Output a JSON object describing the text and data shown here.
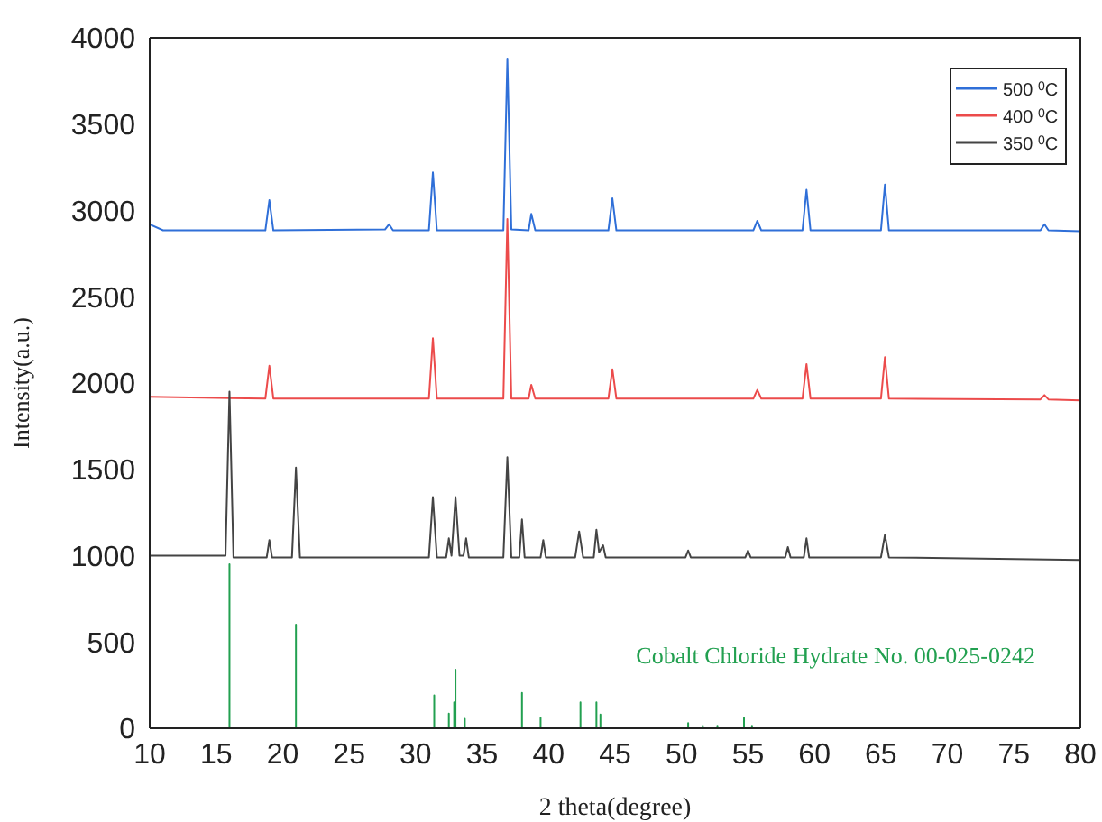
{
  "chart_data": {
    "type": "line",
    "xlabel": "2 theta(degree)",
    "ylabel": "Intensity(a.u.)",
    "xlim": [
      10,
      80
    ],
    "xticks": [
      10,
      15,
      20,
      25,
      30,
      35,
      40,
      45,
      50,
      55,
      60,
      65,
      70,
      75,
      80
    ],
    "ylim": [
      0,
      4000
    ],
    "yticks": [
      0,
      500,
      1000,
      1500,
      2000,
      2500,
      3000,
      3500,
      4000
    ],
    "grid": false,
    "legend": "top right",
    "marker": "none",
    "line_style": "solid",
    "annotations": [
      "Cobalt Chloride Hydrate No. 00-025-0242"
    ],
    "series": [
      {
        "name": "500 $^{0}$C",
        "color": "#2f6fd8",
        "x": [
          10,
          11,
          18.7,
          19.0,
          19.3,
          27.7,
          28.0,
          28.3,
          31.0,
          31.3,
          31.6,
          36.6,
          36.9,
          37.2,
          38.5,
          38.7,
          39.0,
          44.5,
          44.8,
          45.1,
          55.4,
          55.7,
          56.0,
          59.1,
          59.4,
          59.7,
          65.0,
          65.3,
          65.6,
          77.0,
          77.3,
          77.6,
          80
        ],
        "values": [
          2920,
          2885,
          2885,
          3060,
          2885,
          2890,
          2920,
          2885,
          2885,
          3220,
          2885,
          2885,
          3880,
          2890,
          2885,
          2980,
          2885,
          2885,
          3070,
          2885,
          2885,
          2940,
          2885,
          2885,
          3120,
          2885,
          2885,
          3150,
          2885,
          2885,
          2920,
          2885,
          2880
        ]
      },
      {
        "name": "400 $^{0}$C",
        "color": "#ec4b4b",
        "x": [
          10,
          18.7,
          19.0,
          19.3,
          31.0,
          31.3,
          31.6,
          36.6,
          36.9,
          37.2,
          38.5,
          38.7,
          39.0,
          44.5,
          44.8,
          45.1,
          55.4,
          55.7,
          56.0,
          59.1,
          59.4,
          59.7,
          65.0,
          65.3,
          65.6,
          77.0,
          77.3,
          77.6,
          80
        ],
        "values": [
          1920,
          1910,
          2100,
          1910,
          1910,
          2260,
          1910,
          1910,
          2950,
          1910,
          1910,
          1990,
          1910,
          1910,
          2080,
          1910,
          1910,
          1960,
          1910,
          1910,
          2110,
          1910,
          1910,
          2150,
          1910,
          1905,
          1930,
          1905,
          1900
        ]
      },
      {
        "name": "350 $^{0}$C",
        "color": "#444444",
        "x": [
          10,
          15.7,
          16.0,
          16.3,
          18.8,
          19.0,
          19.2,
          20.7,
          21.0,
          21.3,
          31.0,
          31.3,
          31.6,
          32.3,
          32.5,
          32.7,
          33.0,
          33.3,
          33.6,
          33.8,
          34.0,
          36.6,
          36.9,
          37.2,
          37.8,
          38.0,
          38.2,
          39.4,
          39.6,
          39.8,
          42.0,
          42.3,
          42.6,
          43.4,
          43.6,
          43.8,
          44.1,
          44.3,
          50.3,
          50.5,
          50.7,
          54.8,
          55.0,
          55.2,
          57.8,
          58.0,
          58.2,
          59.2,
          59.4,
          59.6,
          65.0,
          65.3,
          65.6,
          80
        ],
        "values": [
          1000,
          1000,
          1950,
          990,
          990,
          1090,
          990,
          990,
          1510,
          990,
          990,
          1340,
          990,
          990,
          1100,
          1000,
          1340,
          1000,
          1000,
          1100,
          990,
          990,
          1570,
          990,
          990,
          1210,
          990,
          990,
          1090,
          990,
          990,
          1140,
          990,
          990,
          1150,
          1020,
          1060,
          990,
          990,
          1030,
          990,
          990,
          1030,
          990,
          990,
          1050,
          990,
          990,
          1100,
          990,
          990,
          1120,
          990,
          975
        ]
      },
      {
        "color": "#22a050",
        "x": [
          16.0,
          16.0,
          16.0,
          21.0,
          21.0,
          21.0,
          31.4,
          31.4,
          31.4,
          32.5,
          32.5,
          32.5,
          32.9,
          32.9,
          32.9,
          33.0,
          33.0,
          33.0,
          33.7,
          33.7,
          33.7,
          38.0,
          38.0,
          38.0,
          39.4,
          39.4,
          39.4,
          42.4,
          42.4,
          42.4,
          43.6,
          43.6,
          43.6,
          43.9,
          43.9,
          43.9,
          50.5,
          50.5,
          50.5,
          51.6,
          51.6,
          51.6,
          52.7,
          52.7,
          52.7,
          54.7,
          54.7,
          54.7,
          55.3,
          55.3,
          55.3
        ],
        "values": [
          0,
          950,
          0,
          0,
          600,
          0,
          0,
          190,
          0,
          0,
          85,
          0,
          0,
          150,
          0,
          0,
          340,
          0,
          0,
          55,
          0,
          0,
          205,
          0,
          0,
          60,
          0,
          0,
          150,
          0,
          0,
          150,
          0,
          0,
          80,
          0,
          0,
          30,
          0,
          0,
          15,
          0,
          0,
          15,
          0,
          0,
          60,
          0,
          0,
          15,
          0
        ]
      }
    ]
  }
}
